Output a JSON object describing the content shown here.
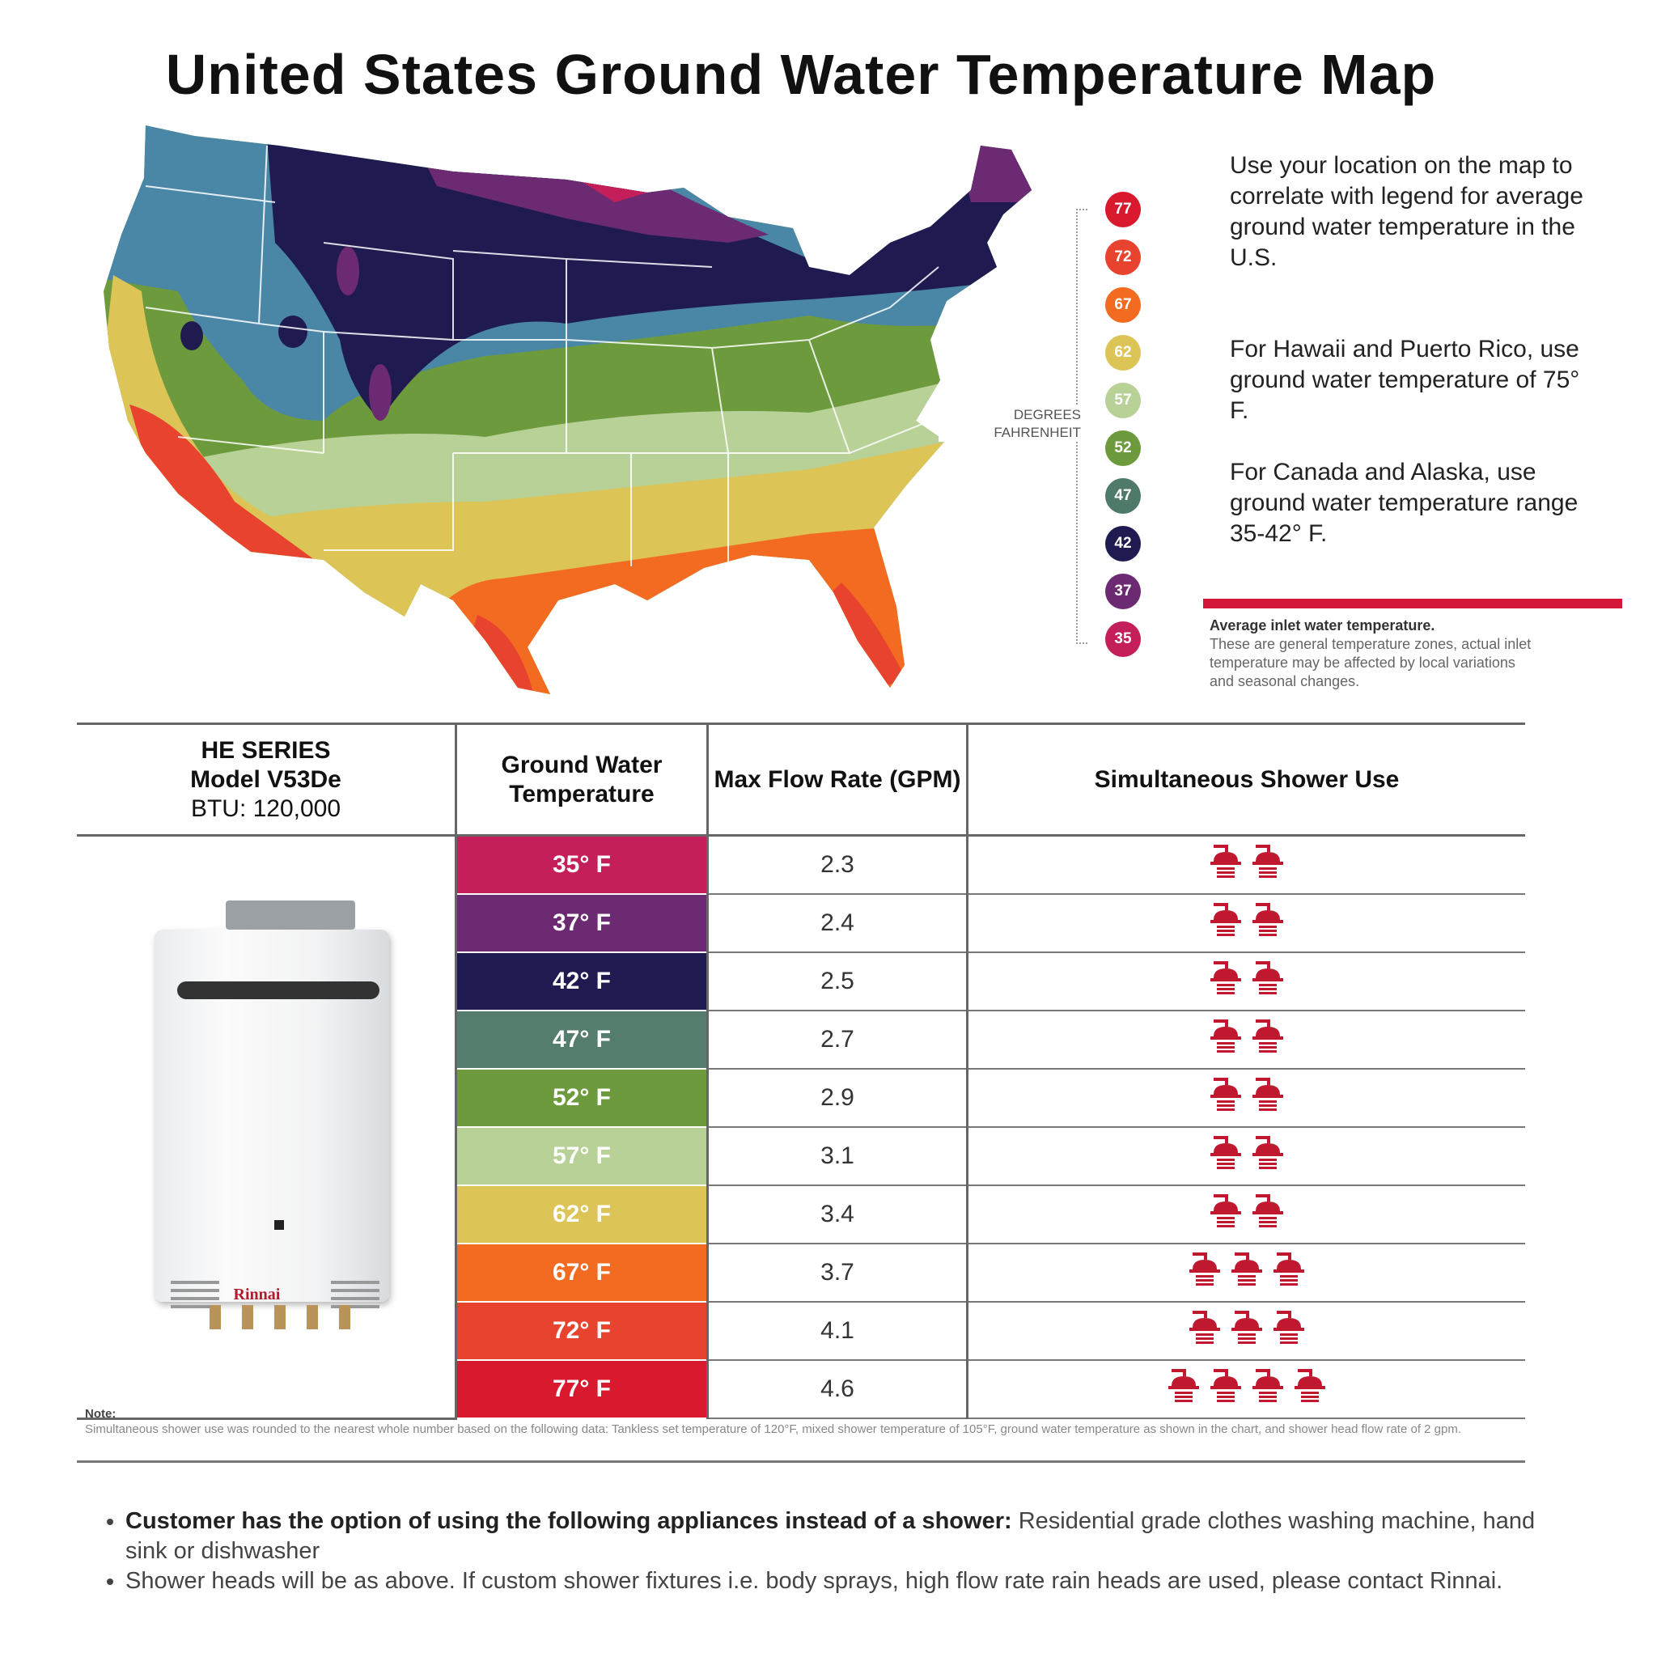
{
  "title": "United States Ground Water Temperature Map",
  "legend": {
    "label_line1": "DEGREES",
    "label_line2": "FAHRENHEIT",
    "items": [
      {
        "value": "77",
        "color": "#d8192e"
      },
      {
        "value": "72",
        "color": "#e8432e"
      },
      {
        "value": "67",
        "color": "#f36b21"
      },
      {
        "value": "62",
        "color": "#dcc457"
      },
      {
        "value": "57",
        "color": "#b8d197"
      },
      {
        "value": "52",
        "color": "#6d9a3c"
      },
      {
        "value": "47",
        "color": "#4f7a6a"
      },
      {
        "value": "42",
        "color": "#1f1a4f"
      },
      {
        "value": "37",
        "color": "#6b2a72"
      },
      {
        "value": "35",
        "color": "#c41f5a"
      }
    ]
  },
  "info": {
    "p1": "Use your location on the map to correlate with legend for average ground water temperature in the U.S.",
    "p2": "For Hawaii and Puerto Rico, use ground water temperature of 75° F.",
    "p3": "For Canada and Alaska, use ground water temperature range 35-42° F.",
    "inlet_title": "Average inlet water temperature.",
    "inlet_text": "These are general temperature zones, actual inlet temperature may be affected by local variations and seasonal changes."
  },
  "table": {
    "model_line1": "HE SERIES",
    "model_line2": "Model V53De",
    "model_line3": "BTU: 120,000",
    "col_temp": "Ground Water Temperature",
    "col_flow": "Max Flow Rate (GPM)",
    "col_shower": "Simultaneous Shower Use",
    "brand": "Rinnai",
    "rows": [
      {
        "temp": "35° F",
        "flow": "2.3",
        "showers": 2,
        "color": "#c41f5a"
      },
      {
        "temp": "37° F",
        "flow": "2.4",
        "showers": 2,
        "color": "#6b2a72"
      },
      {
        "temp": "42° F",
        "flow": "2.5",
        "showers": 2,
        "color": "#1f1a4f"
      },
      {
        "temp": "47° F",
        "flow": "2.7",
        "showers": 2,
        "color": "#557d6d"
      },
      {
        "temp": "52° F",
        "flow": "2.9",
        "showers": 2,
        "color": "#6d9a3c"
      },
      {
        "temp": "57° F",
        "flow": "3.1",
        "showers": 2,
        "color": "#b8d197"
      },
      {
        "temp": "62° F",
        "flow": "3.4",
        "showers": 2,
        "color": "#dcc457"
      },
      {
        "temp": "67° F",
        "flow": "3.7",
        "showers": 3,
        "color": "#f36b21"
      },
      {
        "temp": "72° F",
        "flow": "4.1",
        "showers": 3,
        "color": "#e8432e"
      },
      {
        "temp": "77° F",
        "flow": "4.6",
        "showers": 4,
        "color": "#d8192e"
      }
    ]
  },
  "note": {
    "label": "Note:",
    "text": "Simultaneous shower use was rounded to the nearest whole number based on the following data: Tankless set temperature of 120°F, mixed shower temperature of 105°F, ground water temperature as shown in the chart, and shower head flow rate of 2 gpm."
  },
  "bullets": [
    {
      "bold": "Customer has the option of using the following appliances instead of a shower:",
      "text": " Residential grade clothes washing machine, hand sink or dishwasher"
    },
    {
      "bold": "",
      "text": "Shower heads will be as above. If custom shower fixtures  i.e. body sprays, high flow rate rain heads are used, please contact Rinnai."
    }
  ],
  "shower_icon_color": "#c0182f"
}
